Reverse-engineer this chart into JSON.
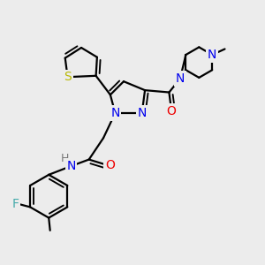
{
  "background_color": "#ececec",
  "atoms": {
    "S": {
      "color": "#b8b800"
    },
    "N": {
      "color": "#0000ee"
    },
    "O": {
      "color": "#ee0000"
    },
    "F": {
      "color": "#44aaaa"
    },
    "H": {
      "color": "#777777"
    },
    "C": {
      "color": "#000000"
    }
  },
  "bond_color": "#000000",
  "bond_width": 1.6
}
